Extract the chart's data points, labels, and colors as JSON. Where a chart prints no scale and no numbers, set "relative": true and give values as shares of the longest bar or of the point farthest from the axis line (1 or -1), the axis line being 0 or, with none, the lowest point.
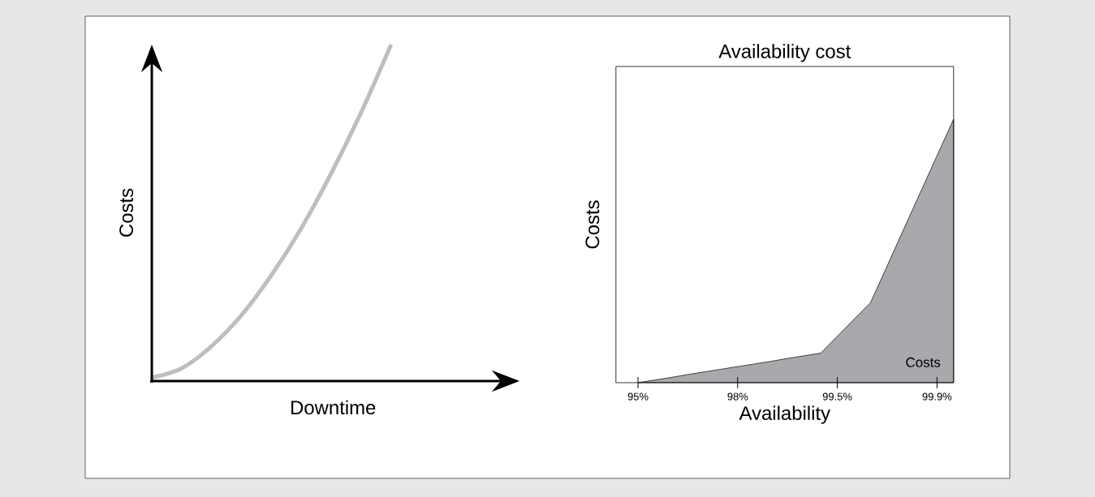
{
  "chart_data": [
    {
      "type": "line",
      "relative": true,
      "xlabel": "Downtime",
      "ylabel": "Costs",
      "color": "#bcbec0",
      "categories": [
        null,
        null,
        null,
        null,
        null,
        null,
        null,
        null,
        null,
        null,
        null,
        null,
        null
      ],
      "values": [
        0.01,
        0.038,
        0.104,
        0.196,
        0.315,
        0.455,
        0.618,
        0.799,
        1,
        null,
        null,
        null,
        null
      ]
    },
    {
      "type": "area",
      "relative": true,
      "title": "Availability cost",
      "xlabel": "Availability",
      "ylabel": "Costs",
      "categories": [
        "95%",
        null,
        null,
        null,
        null,
        null,
        "98%",
        null,
        null,
        null,
        null,
        null,
        "99.5%",
        null,
        null,
        null,
        null,
        null,
        "99.9%",
        null
      ],
      "series": [
        {
          "name": "Costs",
          "color": "#a7a9ac",
          "values": [
            0,
            0.01,
            0.02,
            0.031,
            0.041,
            0.051,
            0.061,
            0.071,
            0.081,
            0.092,
            0.102,
            0.112,
            0.176,
            0.24,
            0.304,
            0.443,
            0.583,
            0.722,
            0.861,
            1
          ]
        }
      ]
    }
  ]
}
